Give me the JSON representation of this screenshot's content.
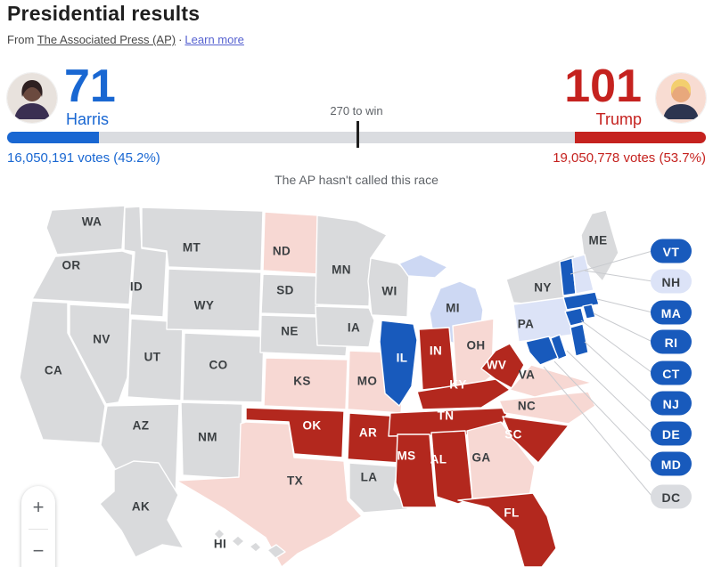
{
  "header": {
    "title": "Presidential results",
    "source_prefix": "From",
    "source_link": "The Associated Press (AP)",
    "separator": "·",
    "learn_more_label": "Learn more"
  },
  "scoreboard": {
    "threshold_label": "270 to win",
    "status_text": "The AP hasn't called this race",
    "harris": {
      "name": "Harris",
      "electoral_votes": "71",
      "votes_text": "16,050,191 votes (45.2%)"
    },
    "trump": {
      "name": "Trump",
      "electoral_votes": "101",
      "votes_text": "19,050,778 votes (53.7%)"
    }
  },
  "colors": {
    "harris_blue": "#1967d2",
    "trump_red": "#c5221f",
    "map_blue": "#185abc",
    "map_red": "#b3281e",
    "map_pink": "#f7d8d3",
    "map_gray": "#d9dadc",
    "map_lightblue": "#cdd8f3",
    "map_lavender": "#dce3f7",
    "pill_gray": "#dadce0",
    "bar_track": "#dadce0",
    "label_dark": "#3c4043",
    "label_light": "#ffffff"
  },
  "map": {
    "states": [
      {
        "id": "WA",
        "label": "WA",
        "fill": "map_gray"
      },
      {
        "id": "OR",
        "label": "OR",
        "fill": "map_gray"
      },
      {
        "id": "CA",
        "label": "CA",
        "fill": "map_gray"
      },
      {
        "id": "NV",
        "label": "NV",
        "fill": "map_gray"
      },
      {
        "id": "ID",
        "label": "ID",
        "fill": "map_gray"
      },
      {
        "id": "UT",
        "label": "UT",
        "fill": "map_gray"
      },
      {
        "id": "AZ",
        "label": "AZ",
        "fill": "map_gray"
      },
      {
        "id": "MT",
        "label": "MT",
        "fill": "map_gray"
      },
      {
        "id": "WY",
        "label": "WY",
        "fill": "map_gray"
      },
      {
        "id": "CO",
        "label": "CO",
        "fill": "map_gray"
      },
      {
        "id": "NM",
        "label": "NM",
        "fill": "map_gray"
      },
      {
        "id": "ND",
        "label": "ND",
        "fill": "map_pink"
      },
      {
        "id": "SD",
        "label": "SD",
        "fill": "map_gray"
      },
      {
        "id": "NE",
        "label": "NE",
        "fill": "map_gray"
      },
      {
        "id": "KS",
        "label": "KS",
        "fill": "map_pink"
      },
      {
        "id": "OK",
        "label": "OK",
        "fill": "map_red"
      },
      {
        "id": "TX",
        "label": "TX",
        "fill": "map_pink"
      },
      {
        "id": "MN",
        "label": "MN",
        "fill": "map_gray"
      },
      {
        "id": "IA",
        "label": "IA",
        "fill": "map_gray"
      },
      {
        "id": "MO",
        "label": "MO",
        "fill": "map_pink"
      },
      {
        "id": "AR",
        "label": "AR",
        "fill": "map_red"
      },
      {
        "id": "LA",
        "label": "LA",
        "fill": "map_gray"
      },
      {
        "id": "WI",
        "label": "WI",
        "fill": "map_gray"
      },
      {
        "id": "IL",
        "label": "IL",
        "fill": "map_blue"
      },
      {
        "id": "MI",
        "label": "MI",
        "fill": "map_lightblue"
      },
      {
        "id": "IN",
        "label": "IN",
        "fill": "map_red"
      },
      {
        "id": "OH",
        "label": "OH",
        "fill": "map_pink"
      },
      {
        "id": "KY",
        "label": "KY",
        "fill": "map_red"
      },
      {
        "id": "TN",
        "label": "TN",
        "fill": "map_red"
      },
      {
        "id": "MS",
        "label": "MS",
        "fill": "map_red"
      },
      {
        "id": "AL",
        "label": "AL",
        "fill": "map_red"
      },
      {
        "id": "GA",
        "label": "GA",
        "fill": "map_pink"
      },
      {
        "id": "FL",
        "label": "FL",
        "fill": "map_red"
      },
      {
        "id": "WV",
        "label": "WV",
        "fill": "map_red"
      },
      {
        "id": "VA",
        "label": "VA",
        "fill": "map_pink"
      },
      {
        "id": "NC",
        "label": "NC",
        "fill": "map_pink"
      },
      {
        "id": "SC",
        "label": "SC",
        "fill": "map_red"
      },
      {
        "id": "NY",
        "label": "NY",
        "fill": "map_gray"
      },
      {
        "id": "PA",
        "label": "PA",
        "fill": "map_lavender"
      },
      {
        "id": "ME",
        "label": "ME",
        "fill": "map_gray"
      },
      {
        "id": "VT",
        "label": "",
        "fill": "map_blue"
      },
      {
        "id": "NH",
        "label": "",
        "fill": "map_lavender"
      },
      {
        "id": "MA",
        "label": "",
        "fill": "map_blue"
      },
      {
        "id": "CT",
        "label": "",
        "fill": "map_blue"
      },
      {
        "id": "RI",
        "label": "",
        "fill": "map_blue"
      },
      {
        "id": "NJ",
        "label": "",
        "fill": "map_blue"
      },
      {
        "id": "DE",
        "label": "",
        "fill": "map_blue"
      },
      {
        "id": "MD",
        "label": "",
        "fill": "map_blue"
      },
      {
        "id": "AK",
        "label": "AK",
        "fill": "map_gray"
      },
      {
        "id": "HI",
        "label": "HI",
        "fill": "map_gray"
      }
    ],
    "pills": [
      {
        "label": "VT",
        "fill": "map_blue"
      },
      {
        "label": "NH",
        "fill": "map_lavender"
      },
      {
        "label": "MA",
        "fill": "map_blue"
      },
      {
        "label": "RI",
        "fill": "map_blue"
      },
      {
        "label": "CT",
        "fill": "map_blue"
      },
      {
        "label": "NJ",
        "fill": "map_blue"
      },
      {
        "label": "DE",
        "fill": "map_blue"
      },
      {
        "label": "MD",
        "fill": "map_blue"
      },
      {
        "label": "DC",
        "fill": "pill_gray"
      }
    ]
  },
  "zoom_control": {
    "zoom_in": "+",
    "zoom_out": "−"
  }
}
